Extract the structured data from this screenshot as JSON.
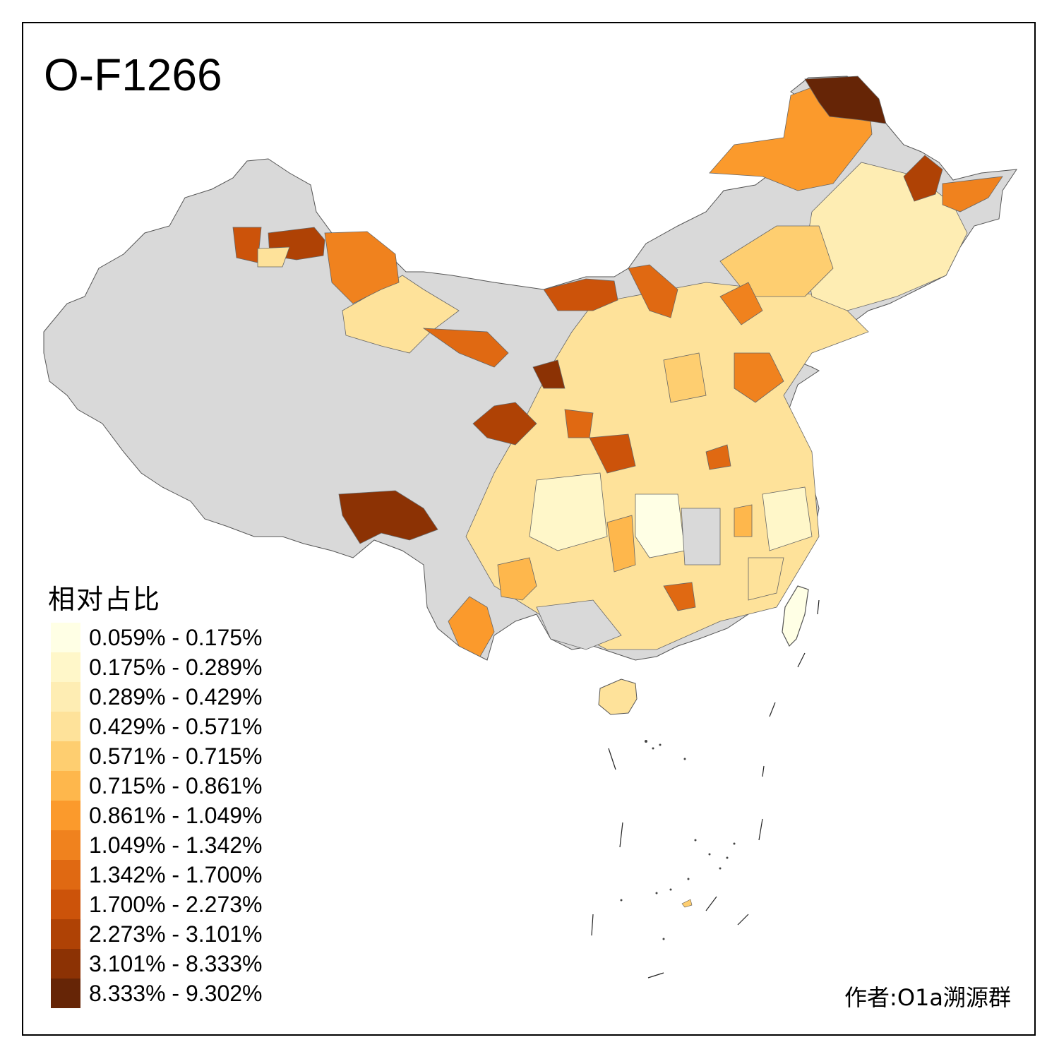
{
  "title": "O-F1266",
  "legend": {
    "title": "相对占比",
    "items": [
      {
        "label": "0.059% - 0.175%",
        "color": "#FFFFE5"
      },
      {
        "label": "0.175% - 0.289%",
        "color": "#FFF7C9"
      },
      {
        "label": "0.289% - 0.429%",
        "color": "#FEEDB3"
      },
      {
        "label": "0.429% - 0.571%",
        "color": "#FEE29A"
      },
      {
        "label": "0.571% - 0.715%",
        "color": "#FECE70"
      },
      {
        "label": "0.715% - 0.861%",
        "color": "#FEB74C"
      },
      {
        "label": "0.861% - 1.049%",
        "color": "#FB9A2C"
      },
      {
        "label": "1.049% - 1.342%",
        "color": "#F0821E"
      },
      {
        "label": "1.342% - 1.700%",
        "color": "#E06912"
      },
      {
        "label": "1.700% - 2.273%",
        "color": "#CC530A"
      },
      {
        "label": "2.273% - 3.101%",
        "color": "#AF4205"
      },
      {
        "label": "3.101% - 8.333%",
        "color": "#8C3204"
      },
      {
        "label": "8.333% - 9.302%",
        "color": "#662506"
      }
    ]
  },
  "no_data_color": "#D9D9D9",
  "credit": "作者:O1a溯源群"
}
